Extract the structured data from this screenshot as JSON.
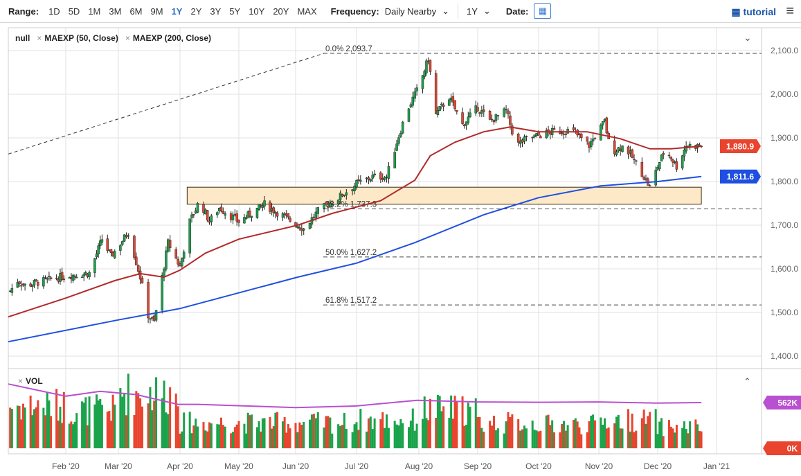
{
  "toolbar": {
    "range_label": "Range:",
    "ranges": [
      "1D",
      "5D",
      "1M",
      "3M",
      "6M",
      "9M",
      "1Y",
      "2Y",
      "3Y",
      "5Y",
      "10Y",
      "20Y",
      "MAX"
    ],
    "active_range": "1Y",
    "frequency_label": "Frequency:",
    "frequency_value": "Daily Nearby",
    "period_value": "1Y",
    "date_label": "Date:",
    "tutorial_label": "tutorial",
    "calendar_icon": "calendar-icon",
    "menu_icon": "hamburger-icon"
  },
  "legend": {
    "items": [
      "null",
      "MAEXP (50, Close)",
      "MAEXP (200, Close)"
    ],
    "volume_label": "VOL"
  },
  "colors": {
    "up": "#1aa34a",
    "down": "#e8442e",
    "ma50": "#b22a2a",
    "ma200": "#1f4fe0",
    "vol_ma": "#b94fd1",
    "zone": "#fde9c8"
  },
  "chart_data": {
    "type": "candlestick",
    "year": 2020,
    "price_axis": {
      "ylim": [
        1400,
        2100
      ],
      "ticks": [
        "2,100.0",
        "2,000.0",
        "1,900.0",
        "1,800.0",
        "1,700.0",
        "1,600.0",
        "1,500.0",
        "1,400.0"
      ],
      "tick_values": [
        2100,
        2000,
        1900,
        1800,
        1700,
        1600,
        1500,
        1400
      ]
    },
    "x_ticks": [
      "Feb '20",
      "Mar '20",
      "Apr '20",
      "May '20",
      "Jun '20",
      "Jul '20",
      "Aug '20",
      "Sep '20",
      "Oct '20",
      "Nov '20",
      "Dec '20",
      "Jan '21"
    ],
    "close_path": [
      [
        "01-02",
        1549
      ],
      [
        "01-06",
        1573
      ],
      [
        "01-10",
        1562
      ],
      [
        "02-01",
        1584
      ],
      [
        "02-14",
        1590
      ],
      [
        "02-21",
        1668
      ],
      [
        "02-26",
        1628
      ],
      [
        "03-06",
        1684
      ],
      [
        "03-12",
        1581
      ],
      [
        "03-16",
        1494
      ],
      [
        "03-19",
        1478
      ],
      [
        "03-23",
        1581
      ],
      [
        "03-26",
        1660
      ],
      [
        "04-01",
        1605
      ],
      [
        "04-06",
        1708
      ],
      [
        "04-11",
        1756
      ],
      [
        "04-16",
        1708
      ],
      [
        "04-21",
        1740
      ],
      [
        "05-01",
        1708
      ],
      [
        "05-15",
        1748
      ],
      [
        "05-24",
        1724
      ],
      [
        "06-05",
        1692
      ],
      [
        "06-12",
        1732
      ],
      [
        "06-22",
        1763
      ],
      [
        "07-01",
        1795
      ],
      [
        "07-09",
        1811
      ],
      [
        "07-16",
        1811
      ],
      [
        "07-21",
        1890
      ],
      [
        "07-26",
        1962
      ],
      [
        "08-01",
        2017
      ],
      [
        "08-06",
        2081
      ],
      [
        "08-10",
        1954
      ],
      [
        "08-17",
        1994
      ],
      [
        "08-24",
        1930
      ],
      [
        "09-01",
        1970
      ],
      [
        "09-07",
        1938
      ],
      [
        "09-15",
        1962
      ],
      [
        "09-20",
        1883
      ],
      [
        "09-25",
        1898
      ],
      [
        "10-08",
        1914
      ],
      [
        "10-18",
        1917
      ],
      [
        "10-27",
        1883
      ],
      [
        "11-04",
        1938
      ],
      [
        "11-07",
        1867
      ],
      [
        "11-14",
        1883
      ],
      [
        "11-23",
        1819
      ],
      [
        "11-27",
        1787
      ],
      [
        "12-01",
        1835
      ],
      [
        "12-05",
        1875
      ],
      [
        "12-11",
        1835
      ],
      [
        "12-16",
        1883
      ],
      [
        "12-24",
        1881
      ]
    ],
    "ma50": {
      "label": "MAEXP (50, Close)",
      "last": "1,880.9",
      "points": [
        [
          "01-01",
          1490
        ],
        [
          "02-01",
          1533
        ],
        [
          "02-28",
          1573
        ],
        [
          "03-12",
          1589
        ],
        [
          "03-24",
          1581
        ],
        [
          "04-01",
          1597
        ],
        [
          "04-14",
          1636
        ],
        [
          "05-01",
          1668
        ],
        [
          "06-02",
          1700
        ],
        [
          "06-19",
          1727
        ],
        [
          "07-13",
          1756
        ],
        [
          "07-30",
          1803
        ],
        [
          "08-07",
          1859
        ],
        [
          "08-20",
          1890
        ],
        [
          "09-04",
          1914
        ],
        [
          "09-17",
          1925
        ],
        [
          "10-01",
          1914
        ],
        [
          "10-26",
          1914
        ],
        [
          "11-12",
          1898
        ],
        [
          "11-27",
          1875
        ],
        [
          "12-08",
          1875
        ],
        [
          "12-24",
          1880.9
        ]
      ]
    },
    "ma200": {
      "label": "MAEXP (200, Close)",
      "last": "1,811.6",
      "points": [
        [
          "01-01",
          1433
        ],
        [
          "03-01",
          1483
        ],
        [
          "04-01",
          1509
        ],
        [
          "06-02",
          1581
        ],
        [
          "07-01",
          1613
        ],
        [
          "07-30",
          1660
        ],
        [
          "09-04",
          1724
        ],
        [
          "10-01",
          1763
        ],
        [
          "11-02",
          1790
        ],
        [
          "12-01",
          1800
        ],
        [
          "12-24",
          1811.6
        ]
      ]
    },
    "fibonacci": [
      {
        "label": "0.0% 2,093.7",
        "value": 2093.7
      },
      {
        "label": "38.2% 1,737.3",
        "value": 1737.3
      },
      {
        "label": "50.0% 1,627.2",
        "value": 1627.2
      },
      {
        "label": "61.8% 1,517.2",
        "value": 1517.2
      }
    ],
    "fib_trend": [
      [
        "01-01",
        1863
      ],
      [
        "06-15",
        2093.7
      ]
    ],
    "zone": {
      "from": "04-05",
      "to": "12-24",
      "low": 1748,
      "high": 1787
    },
    "volume": {
      "ylim_k": [
        0,
        900
      ],
      "last_label": "562K",
      "zero_label": "0K",
      "monthly_level_k": [
        500,
        450,
        650,
        300,
        300,
        300,
        330,
        450,
        300,
        280,
        330,
        250
      ],
      "ma_points": [
        [
          "01-01",
          790
        ],
        [
          "02-01",
          640
        ],
        [
          "02-20",
          700
        ],
        [
          "03-10",
          660
        ],
        [
          "03-31",
          540
        ],
        [
          "04-10",
          540
        ],
        [
          "06-01",
          500
        ],
        [
          "07-01",
          520
        ],
        [
          "07-31",
          590
        ],
        [
          "09-01",
          570
        ],
        [
          "10-01",
          565
        ],
        [
          "11-01",
          570
        ],
        [
          "12-01",
          555
        ],
        [
          "12-24",
          562
        ]
      ]
    }
  }
}
